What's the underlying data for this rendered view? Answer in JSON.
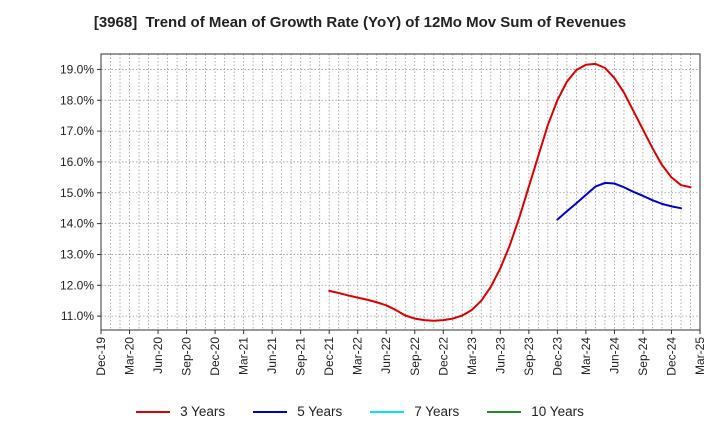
{
  "chart_data": {
    "type": "line",
    "title_code": "[3968]",
    "title_text": "Trend of Mean of Growth Rate (YoY) of 12Mo Mov Sum of Revenues",
    "categories": [
      "Dec-19",
      "Mar-20",
      "Jun-20",
      "Sep-20",
      "Dec-20",
      "Mar-21",
      "Jun-21",
      "Sep-21",
      "Dec-21",
      "Mar-22",
      "Jun-22",
      "Sep-22",
      "Dec-22",
      "Mar-23",
      "Jun-23",
      "Sep-23",
      "Dec-23",
      "Mar-24",
      "Jun-24",
      "Sep-24",
      "Dec-24",
      "Mar-25"
    ],
    "y_ticks": [
      "11.0%",
      "12.0%",
      "13.0%",
      "14.0%",
      "15.0%",
      "16.0%",
      "17.0%",
      "18.0%",
      "19.0%"
    ],
    "ylim": [
      10.55,
      19.5
    ],
    "grid": true,
    "legend_position": "bottom",
    "series": [
      {
        "name": "3 Years",
        "color": "#dd0000",
        "points": [
          [
            8.0,
            11.82
          ],
          [
            8.333,
            11.75
          ],
          [
            8.667,
            11.67
          ],
          [
            9.0,
            11.6
          ],
          [
            9.333,
            11.53
          ],
          [
            9.667,
            11.45
          ],
          [
            10.0,
            11.35
          ],
          [
            10.333,
            11.2
          ],
          [
            10.667,
            11.02
          ],
          [
            11.0,
            10.92
          ],
          [
            11.333,
            10.87
          ],
          [
            11.667,
            10.85
          ],
          [
            12.0,
            10.87
          ],
          [
            12.333,
            10.92
          ],
          [
            12.667,
            11.02
          ],
          [
            13.0,
            11.2
          ],
          [
            13.333,
            11.5
          ],
          [
            13.667,
            11.95
          ],
          [
            14.0,
            12.55
          ],
          [
            14.333,
            13.3
          ],
          [
            14.667,
            14.2
          ],
          [
            15.0,
            15.2
          ],
          [
            15.333,
            16.2
          ],
          [
            15.667,
            17.2
          ],
          [
            16.0,
            18.0
          ],
          [
            16.333,
            18.6
          ],
          [
            16.667,
            18.98
          ],
          [
            17.0,
            19.15
          ],
          [
            17.333,
            19.18
          ],
          [
            17.667,
            19.05
          ],
          [
            18.0,
            18.72
          ],
          [
            18.333,
            18.25
          ],
          [
            18.667,
            17.65
          ],
          [
            19.0,
            17.05
          ],
          [
            19.333,
            16.45
          ],
          [
            19.667,
            15.9
          ],
          [
            20.0,
            15.5
          ],
          [
            20.333,
            15.25
          ],
          [
            20.667,
            15.18
          ]
        ]
      },
      {
        "name": "5 Years",
        "color": "#0000cc",
        "points": [
          [
            16.0,
            14.13
          ],
          [
            16.333,
            14.4
          ],
          [
            16.667,
            14.66
          ],
          [
            17.0,
            14.93
          ],
          [
            17.333,
            15.2
          ],
          [
            17.667,
            15.32
          ],
          [
            18.0,
            15.3
          ],
          [
            18.333,
            15.18
          ],
          [
            18.667,
            15.03
          ],
          [
            19.0,
            14.9
          ],
          [
            19.333,
            14.76
          ],
          [
            19.667,
            14.64
          ],
          [
            20.0,
            14.56
          ],
          [
            20.333,
            14.5
          ]
        ]
      },
      {
        "name": "7 Years",
        "color": "#00e5ee",
        "points": []
      },
      {
        "name": "10 Years",
        "color": "#228b22",
        "points": []
      }
    ]
  }
}
